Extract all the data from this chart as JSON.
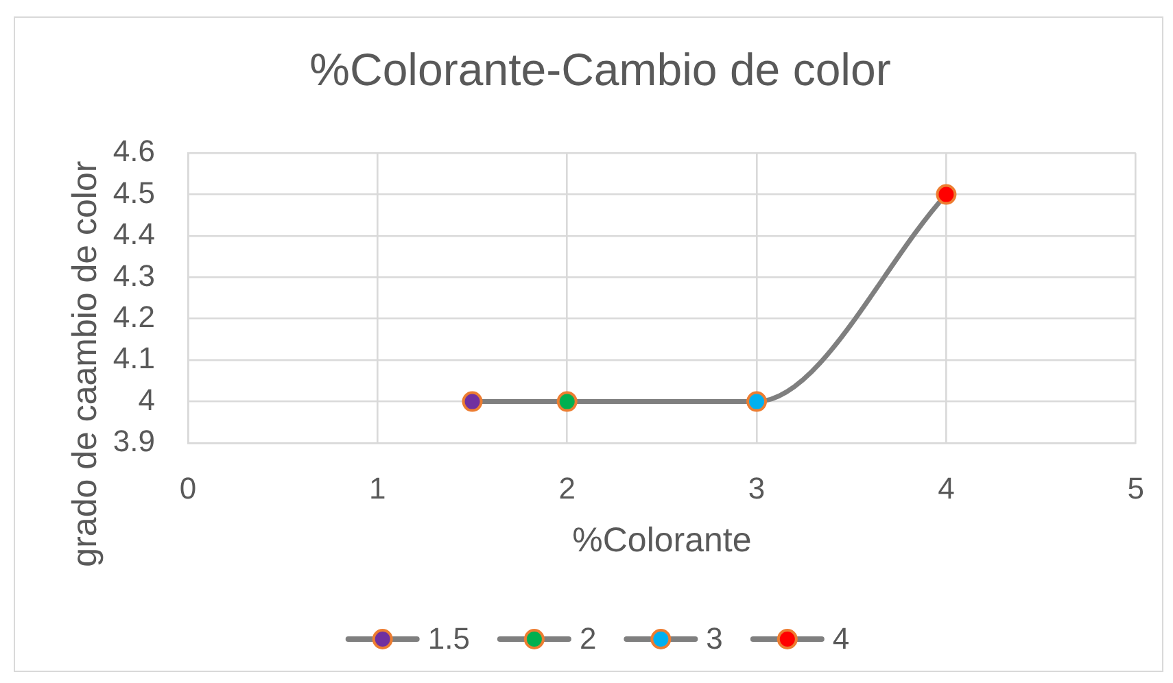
{
  "chart_data": {
    "type": "line",
    "title": "%Colorante-Cambio de color",
    "xlabel": "%Colorante",
    "ylabel": "grado de caambio de color",
    "series": [
      {
        "type": "line",
        "color": "#7f7f7f",
        "marker": "none",
        "x": [
          1.5,
          2,
          3,
          4
        ],
        "values": [
          4,
          4,
          4,
          4.5
        ]
      },
      {
        "type": "scatter",
        "name": "1.5",
        "color": "#7030a0",
        "x": [
          1.5
        ],
        "values": [
          4
        ]
      },
      {
        "type": "scatter",
        "name": "2",
        "color": "#00b050",
        "x": [
          2
        ],
        "values": [
          4
        ]
      },
      {
        "type": "scatter",
        "name": "3",
        "color": "#00b0f0",
        "x": [
          3
        ],
        "values": [
          4
        ]
      },
      {
        "type": "scatter",
        "name": "4",
        "color": "#ff0000",
        "x": [
          4
        ],
        "values": [
          4.5
        ]
      }
    ],
    "xlim": [
      0,
      5
    ],
    "xticks": [
      0,
      1,
      2,
      3,
      4,
      5
    ],
    "ylim": [
      3.9,
      4.6
    ],
    "yticks": [
      3.9,
      4,
      4.1,
      4.2,
      4.3,
      4.4,
      4.5,
      4.6
    ],
    "grid": true,
    "legend": "bottom",
    "marker": "circle",
    "line_style": "solid"
  }
}
